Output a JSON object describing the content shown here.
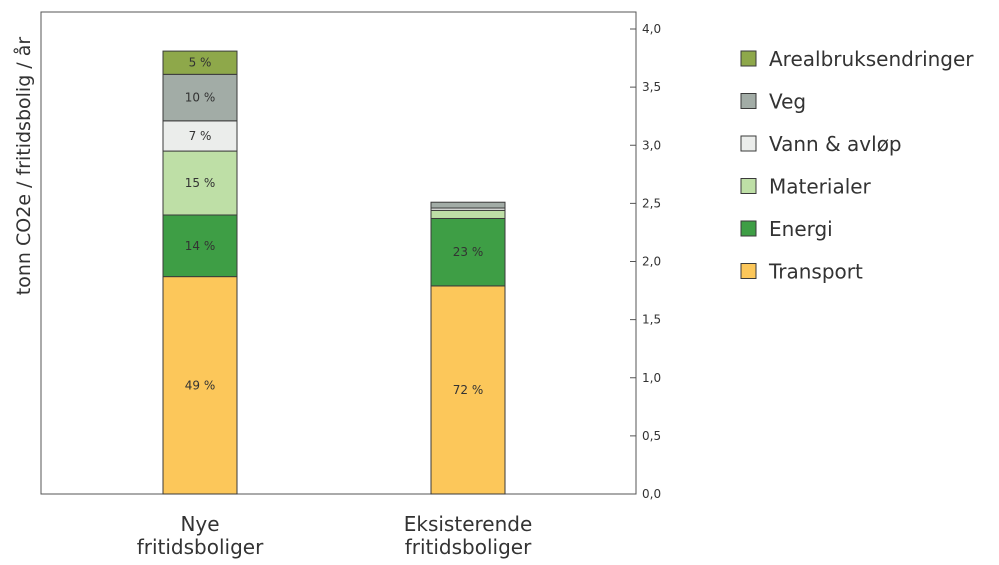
{
  "chart_data": {
    "type": "bar",
    "stacked": true,
    "ylabel": "tonn CO2e / fritidsbolig / år",
    "ylim": [
      0,
      4.0
    ],
    "yticks": [
      "0,0",
      "0,5",
      "1,0",
      "1,5",
      "2,0",
      "2,5",
      "3,0",
      "3,5",
      "4,0"
    ],
    "grid": false,
    "y_axis_side": "right",
    "legend_placement": "right",
    "categories": [
      [
        "Nye",
        "fritidsboliger"
      ],
      [
        "Eksisterende",
        "fritidsboliger"
      ]
    ],
    "series": [
      {
        "name": "Transport",
        "color": "#FCC75A",
        "values": [
          1.87,
          1.79
        ],
        "labels": [
          "49 %",
          "72 %"
        ]
      },
      {
        "name": "Energi",
        "color": "#3E9E45",
        "values": [
          0.53,
          0.58
        ],
        "labels": [
          "14 %",
          "23 %"
        ]
      },
      {
        "name": "Materialer",
        "color": "#BEDFA6",
        "values": [
          0.55,
          0.07
        ],
        "labels": [
          "15 %",
          ""
        ]
      },
      {
        "name": "Vann & avløp",
        "color": "#EBEDEB",
        "values": [
          0.26,
          0.02
        ],
        "labels": [
          "7 %",
          ""
        ]
      },
      {
        "name": "Veg",
        "color": "#A2ACA6",
        "values": [
          0.4,
          0.05
        ],
        "labels": [
          "10 %",
          ""
        ]
      },
      {
        "name": "Arealbruksendringer",
        "color": "#8EA84A",
        "values": [
          0.2,
          0.0
        ],
        "labels": [
          "5 %",
          ""
        ]
      }
    ]
  }
}
